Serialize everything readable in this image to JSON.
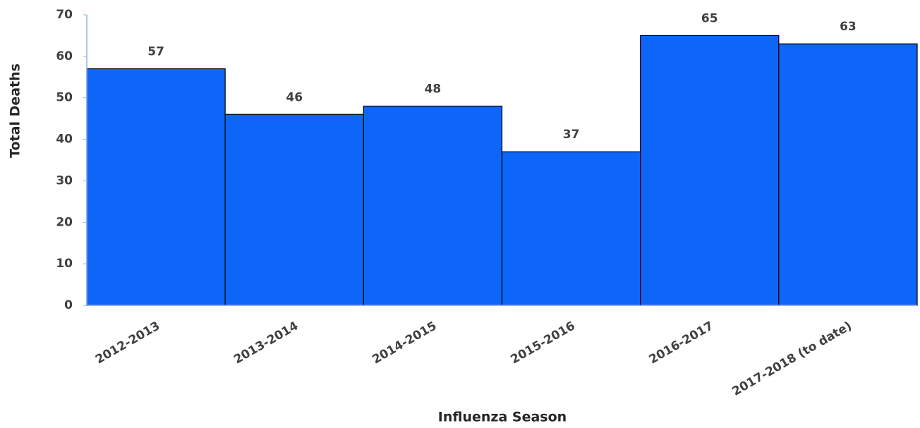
{
  "chart_data": {
    "type": "bar",
    "x_label": "Influenza Season",
    "y_label": "Total Deaths",
    "categories": [
      "2012-2013",
      "2013-2014",
      "2014-2015",
      "2015-2016",
      "2016-2017",
      "2017-2018 (to date)"
    ],
    "values": [
      57,
      46,
      48,
      37,
      65,
      63
    ],
    "color": "#0d66f7",
    "ylim": [
      0,
      70
    ],
    "yticks": [
      0,
      10,
      20,
      30,
      40,
      50,
      60,
      70
    ],
    "grid": false
  }
}
